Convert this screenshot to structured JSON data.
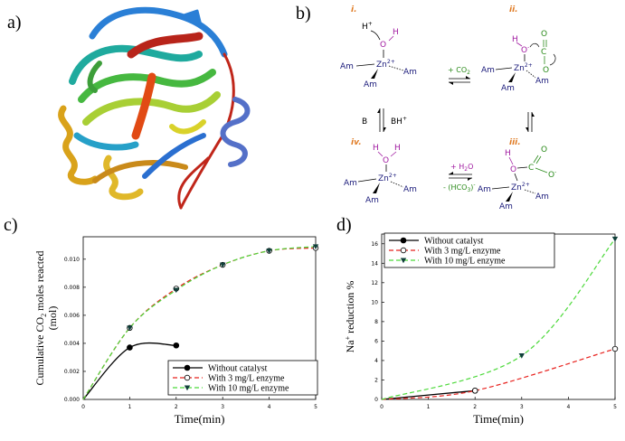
{
  "panels": {
    "a": "a)",
    "b": "b)",
    "c": "c)",
    "d": "d)"
  },
  "mechanism": {
    "step_labels": [
      "i.",
      "ii.",
      "iii.",
      "iv."
    ],
    "zn": "Zn",
    "zn_charge": "2+",
    "am": "Am",
    "h": "H",
    "h_plus": "H",
    "o": "O",
    "c": "C",
    "co2_reagent": "+ CO",
    "co2_sub": "2",
    "water_reagent": "+ H",
    "water_sub": "2",
    "water_tail": "O",
    "bicarbonate": "- (HCO",
    "bicarbonate_sub": "3",
    "bicarbonate_tail": ")",
    "base": "B",
    "base_acid": "BH",
    "colors": {
      "step": "#e07b24",
      "metal": "#1a1a7a",
      "oxygen": "#a01aa0",
      "carbon": "#2a8a1a"
    }
  },
  "chart_data": [
    {
      "type": "line",
      "ylabel": "Cumulative CO2 moles reacted (mol)",
      "ylabel_lines": [
        "Cumulative CO",
        "2",
        " moles reacted",
        "(mol)"
      ],
      "xlabel": "Time(min)",
      "xlim": [
        0,
        5
      ],
      "ylim": [
        0,
        0.0116
      ],
      "xticks": [
        "0",
        "1",
        "2",
        "3",
        "4",
        "5"
      ],
      "yticks": [
        "0.000",
        "0.002",
        "0.004",
        "0.006",
        "0.008",
        "0.010"
      ],
      "ytick_values": [
        0,
        0.002,
        0.004,
        0.006,
        0.008,
        0.01
      ],
      "legend_position": "bottom-right",
      "series": [
        {
          "name": "Without catalyst",
          "color": "#000000",
          "style": "solid",
          "marker": "circle-filled",
          "x": [
            0,
            1,
            2
          ],
          "y": [
            0,
            0.0037,
            0.00385
          ]
        },
        {
          "name": "With 3 mg/L enzyme",
          "color": "#e8231f",
          "style": "dashed",
          "marker": "circle-open",
          "x": [
            0,
            1,
            2,
            3,
            4,
            5
          ],
          "y": [
            0,
            0.0051,
            0.0079,
            0.0096,
            0.0106,
            0.0108
          ]
        },
        {
          "name": "With 10 mg/L enzyme",
          "color": "#4cd93a",
          "style": "dashed",
          "marker": "triangle-down",
          "x": [
            0,
            1,
            2,
            3,
            4,
            5
          ],
          "y": [
            0,
            0.0051,
            0.0078,
            0.0096,
            0.0106,
            0.0109
          ]
        }
      ]
    },
    {
      "type": "line",
      "ylabel": "Na+ reduction %",
      "ylabel_parts": [
        "Na",
        "+",
        " reduction %"
      ],
      "xlabel": "Time(min)",
      "xlim": [
        0,
        5
      ],
      "ylim": [
        0,
        17
      ],
      "xticks": [
        "0",
        "1",
        "2",
        "3",
        "4",
        "5"
      ],
      "yticks": [
        "0",
        "2",
        "4",
        "6",
        "8",
        "10",
        "12",
        "14",
        "16"
      ],
      "ytick_values": [
        0,
        2,
        4,
        6,
        8,
        10,
        12,
        14,
        16
      ],
      "legend_position": "top-left",
      "series": [
        {
          "name": "Without catalyst",
          "color": "#000000",
          "style": "solid",
          "marker": "circle-filled",
          "x": [
            0,
            2
          ],
          "y": [
            0,
            0.9
          ]
        },
        {
          "name": "With 3 mg/L enzyme",
          "color": "#e8231f",
          "style": "dashed",
          "marker": "circle-open",
          "x": [
            0,
            2,
            5
          ],
          "y": [
            0,
            0.9,
            5.2
          ]
        },
        {
          "name": "With 10 mg/L enzyme",
          "color": "#4cd93a",
          "style": "dashed",
          "marker": "triangle-down",
          "x": [
            0,
            3,
            5
          ],
          "y": [
            0,
            4.5,
            16.5
          ]
        }
      ]
    }
  ]
}
